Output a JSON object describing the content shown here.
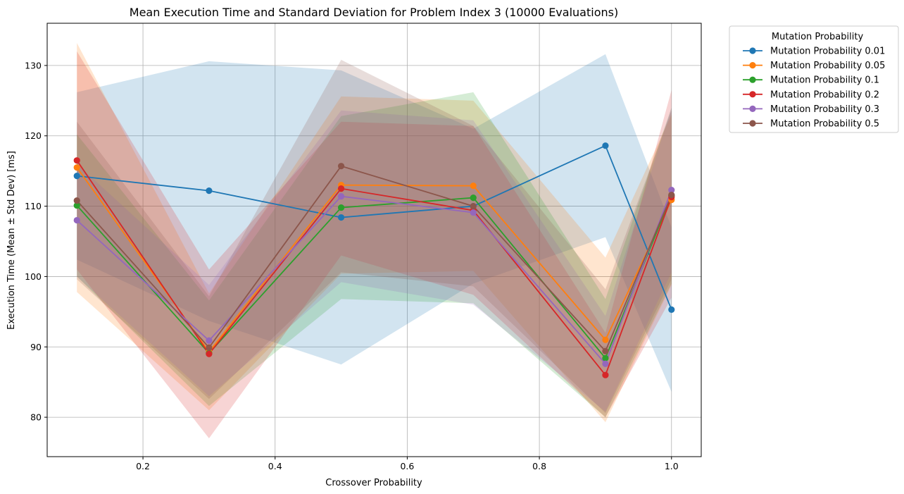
{
  "chart_data": {
    "type": "line",
    "title": "Mean Execution Time and Standard Deviation for Problem Index 3 (10000 Evaluations)",
    "xlabel": "Crossover Probability",
    "ylabel": "Execution Time (Mean ± Std Dev) [ms]",
    "xlim": [
      0.055,
      1.045
    ],
    "ylim": [
      74.4,
      136.0
    ],
    "x_ticks": [
      0.2,
      0.4,
      0.6,
      0.8,
      1.0
    ],
    "x_tick_labels": [
      "0.2",
      "0.4",
      "0.6",
      "0.8",
      "1.0"
    ],
    "y_ticks": [
      80,
      90,
      100,
      110,
      120,
      130
    ],
    "y_tick_labels": [
      "80",
      "90",
      "100",
      "110",
      "120",
      "130"
    ],
    "grid": true,
    "legend": {
      "title": "Mutation Probability",
      "placement": "outside-top-right"
    },
    "x": [
      0.1,
      0.3,
      0.5,
      0.7,
      0.9,
      1.0
    ],
    "series": [
      {
        "name": "Mutation Probability 0.01",
        "color": "#1f77b4",
        "mean": [
          114.3,
          112.2,
          108.4,
          110.0,
          118.6,
          95.3
        ],
        "lower": [
          102.4,
          93.7,
          87.5,
          99.0,
          105.6,
          83.6
        ],
        "upper": [
          126.2,
          130.6,
          129.3,
          121.0,
          131.6,
          107.0
        ]
      },
      {
        "name": "Mutation Probability 0.05",
        "color": "#ff7f0e",
        "mean": [
          115.5,
          89.3,
          113.0,
          112.9,
          91.0,
          110.9
        ],
        "lower": [
          97.8,
          81.0,
          100.4,
          100.8,
          79.3,
          98.8
        ],
        "upper": [
          133.2,
          97.6,
          125.6,
          125.0,
          102.7,
          123.0
        ]
      },
      {
        "name": "Mutation Probability 0.1",
        "color": "#2ca02c",
        "mean": [
          110.1,
          89.1,
          109.8,
          111.2,
          88.4,
          111.5
        ],
        "lower": [
          100.0,
          81.6,
          96.8,
          96.2,
          80.0,
          99.0
        ],
        "upper": [
          120.2,
          96.6,
          122.8,
          126.2,
          96.8,
          124.0
        ]
      },
      {
        "name": "Mutation Probability 0.2",
        "color": "#d62728",
        "mean": [
          116.5,
          89.0,
          112.5,
          109.4,
          86.0,
          111.3
        ],
        "lower": [
          101.0,
          77.0,
          103.0,
          97.4,
          80.0,
          97.0
        ],
        "upper": [
          132.0,
          101.0,
          122.0,
          121.4,
          92.0,
          126.5
        ]
      },
      {
        "name": "Mutation Probability 0.3",
        "color": "#9467bd",
        "mean": [
          108.0,
          90.9,
          111.4,
          109.1,
          87.6,
          112.3
        ],
        "lower": [
          100.0,
          83.0,
          99.2,
          96.0,
          80.8,
          100.6
        ],
        "upper": [
          116.0,
          98.8,
          123.6,
          122.2,
          94.4,
          124.0
        ]
      },
      {
        "name": "Mutation Probability 0.5",
        "color": "#8c564b",
        "mean": [
          110.8,
          89.9,
          115.7,
          110.0,
          89.4,
          111.6
        ],
        "lower": [
          99.6,
          82.6,
          100.6,
          98.6,
          80.6,
          99.6
        ],
        "upper": [
          122.0,
          97.2,
          130.8,
          121.4,
          98.2,
          123.6
        ]
      }
    ]
  }
}
